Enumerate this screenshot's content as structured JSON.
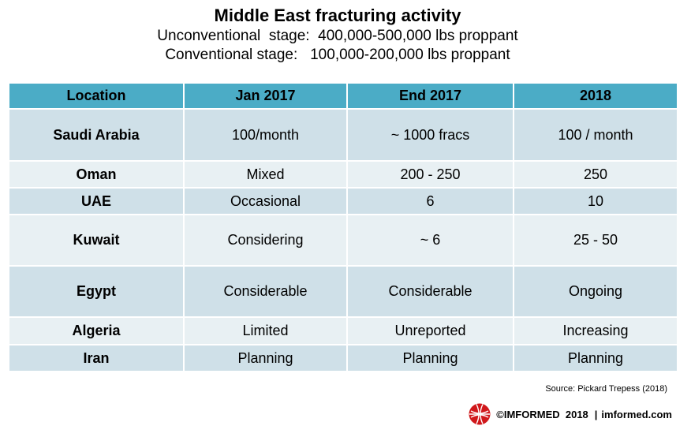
{
  "chart_data": {
    "type": "table",
    "title": "Middle East fracturing activity",
    "subtitle_lines": [
      "Unconventional  stage:  400,000-500,000 lbs proppant",
      "Conventional stage:   100,000-200,000 lbs proppant"
    ],
    "columns": [
      "Location",
      "Jan 2017",
      "End 2017",
      "2018"
    ],
    "rows": [
      [
        "Saudi Arabia",
        "100/month",
        "~ 1000 fracs",
        "100 / month"
      ],
      [
        "Oman",
        "Mixed",
        "200 - 250",
        "250"
      ],
      [
        "UAE",
        "Occasional",
        "6",
        "10"
      ],
      [
        "Kuwait",
        "Considering",
        "~ 6",
        "25 - 50"
      ],
      [
        "Egypt",
        "Considerable",
        "Considerable",
        "Ongoing"
      ],
      [
        "Algeria",
        "Limited",
        "Unreported",
        "Increasing"
      ],
      [
        "Iran",
        "Planning",
        "Planning",
        "Planning"
      ]
    ]
  },
  "source": "Source: Pickard Trepess (2018)",
  "footer": {
    "copyright": "©IMFORMED  2018",
    "separator": "|",
    "website": "imformed.com"
  },
  "colors": {
    "header": "#4bacc6",
    "row_dark": "#cfe0e8",
    "row_light": "#e8f0f3",
    "logo": "#d0181b"
  }
}
